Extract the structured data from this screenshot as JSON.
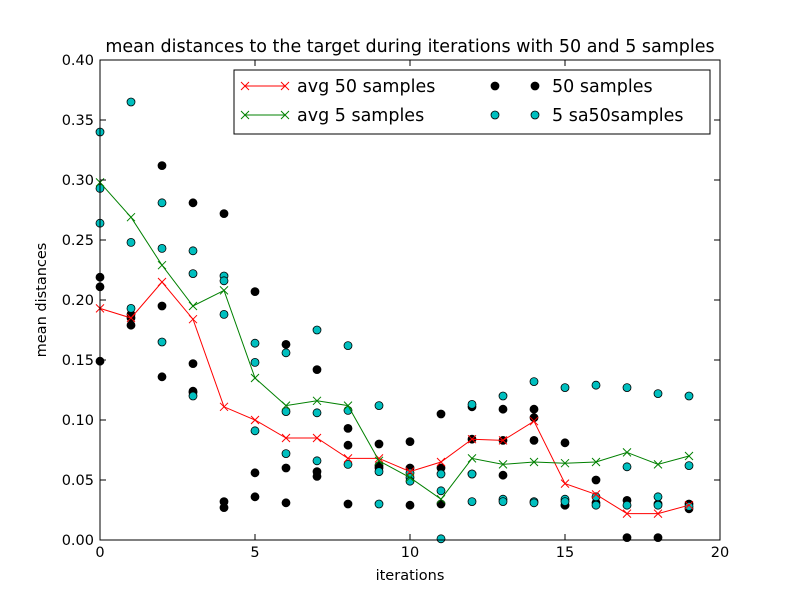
{
  "chart_data": {
    "type": "scatter",
    "title": "mean distances to the target during iterations with 50 and 5 samples",
    "xlabel": "iterations",
    "ylabel": "mean distances",
    "xlim": [
      0,
      20
    ],
    "ylim": [
      0,
      0.4
    ],
    "x_ticks": [
      "0",
      "5",
      "10",
      "15",
      "20"
    ],
    "y_ticks": [
      "0.00",
      "0.05",
      "0.10",
      "0.15",
      "0.20",
      "0.25",
      "0.30",
      "0.35",
      "0.40"
    ],
    "x_tick_values": [
      0,
      5,
      10,
      15,
      20
    ],
    "y_tick_values": [
      0,
      0.05,
      0.1,
      0.15,
      0.2,
      0.25,
      0.3,
      0.35,
      0.4
    ],
    "grid": false,
    "legend_position": "top-right",
    "legend_columns": 2,
    "series": [
      {
        "name": "avg 50 samples",
        "kind": "line",
        "marker": "x",
        "color": "#ff0000",
        "x": [
          0,
          1,
          2,
          3,
          4,
          5,
          6,
          7,
          8,
          9,
          10,
          11,
          12,
          13,
          14,
          15,
          16,
          17,
          18,
          19
        ],
        "y": [
          0.193,
          0.185,
          0.215,
          0.184,
          0.111,
          0.1,
          0.085,
          0.085,
          0.068,
          0.068,
          0.057,
          0.065,
          0.084,
          0.083,
          0.099,
          0.047,
          0.038,
          0.022,
          0.022,
          0.029
        ]
      },
      {
        "name": "avg 5 samples",
        "kind": "line",
        "marker": "x",
        "color": "#008000",
        "x": [
          0,
          1,
          2,
          3,
          4,
          5,
          6,
          7,
          8,
          9,
          10,
          11,
          12,
          13,
          14,
          15,
          16,
          17,
          18,
          19
        ],
        "y": [
          0.298,
          0.269,
          0.229,
          0.195,
          0.208,
          0.135,
          0.112,
          0.116,
          0.112,
          0.066,
          0.052,
          0.034,
          0.068,
          0.063,
          0.065,
          0.064,
          0.065,
          0.073,
          0.063,
          0.07
        ]
      },
      {
        "name": "50 samples",
        "kind": "scatter",
        "marker": "o",
        "color": "#000000",
        "points": [
          [
            0,
            0.219
          ],
          [
            0,
            0.211
          ],
          [
            0,
            0.149
          ],
          [
            1,
            0.188
          ],
          [
            1,
            0.185
          ],
          [
            1,
            0.179
          ],
          [
            2,
            0.312
          ],
          [
            2,
            0.195
          ],
          [
            2,
            0.136
          ],
          [
            3,
            0.281
          ],
          [
            3,
            0.147
          ],
          [
            3,
            0.124
          ],
          [
            3,
            0.123
          ],
          [
            4,
            0.272
          ],
          [
            4,
            0.032
          ],
          [
            4,
            0.027
          ],
          [
            5,
            0.207
          ],
          [
            5,
            0.056
          ],
          [
            5,
            0.036
          ],
          [
            6,
            0.163
          ],
          [
            6,
            0.06
          ],
          [
            6,
            0.031
          ],
          [
            7,
            0.142
          ],
          [
            7,
            0.057
          ],
          [
            7,
            0.053
          ],
          [
            8,
            0.093
          ],
          [
            8,
            0.079
          ],
          [
            8,
            0.03
          ],
          [
            9,
            0.08
          ],
          [
            9,
            0.062
          ],
          [
            9,
            0.06
          ],
          [
            10,
            0.082
          ],
          [
            10,
            0.06
          ],
          [
            10,
            0.029
          ],
          [
            11,
            0.105
          ],
          [
            11,
            0.06
          ],
          [
            11,
            0.03
          ],
          [
            12,
            0.111
          ],
          [
            12,
            0.084
          ],
          [
            12,
            0.055
          ],
          [
            13,
            0.109
          ],
          [
            13,
            0.083
          ],
          [
            13,
            0.054
          ],
          [
            14,
            0.109
          ],
          [
            14,
            0.102
          ],
          [
            14,
            0.083
          ],
          [
            15,
            0.081
          ],
          [
            15,
            0.029
          ],
          [
            15,
            0.029
          ],
          [
            16,
            0.05
          ],
          [
            16,
            0.031
          ],
          [
            17,
            0.033
          ],
          [
            17,
            0.002
          ],
          [
            18,
            0.03
          ],
          [
            18,
            0.002
          ],
          [
            19,
            0.03
          ],
          [
            19,
            0.026
          ]
        ]
      },
      {
        "name": "5 sa50samples",
        "kind": "scatter",
        "marker": "o",
        "color": "#00bfbf",
        "points": [
          [
            0,
            0.34
          ],
          [
            0,
            0.293
          ],
          [
            0,
            0.264
          ],
          [
            1,
            0.365
          ],
          [
            1,
            0.248
          ],
          [
            1,
            0.193
          ],
          [
            2,
            0.281
          ],
          [
            2,
            0.243
          ],
          [
            2,
            0.165
          ],
          [
            3,
            0.241
          ],
          [
            3,
            0.222
          ],
          [
            3,
            0.12
          ],
          [
            4,
            0.22
          ],
          [
            4,
            0.216
          ],
          [
            4,
            0.188
          ],
          [
            5,
            0.164
          ],
          [
            5,
            0.148
          ],
          [
            5,
            0.091
          ],
          [
            6,
            0.156
          ],
          [
            6,
            0.107
          ],
          [
            6,
            0.072
          ],
          [
            7,
            0.175
          ],
          [
            7,
            0.106
          ],
          [
            7,
            0.066
          ],
          [
            8,
            0.162
          ],
          [
            8,
            0.108
          ],
          [
            8,
            0.063
          ],
          [
            9,
            0.112
          ],
          [
            9,
            0.057
          ],
          [
            9,
            0.03
          ],
          [
            10,
            0.056
          ],
          [
            10,
            0.052
          ],
          [
            10,
            0.049
          ],
          [
            11,
            0.055
          ],
          [
            11,
            0.041
          ],
          [
            11,
            0.001
          ],
          [
            12,
            0.113
          ],
          [
            12,
            0.055
          ],
          [
            12,
            0.032
          ],
          [
            13,
            0.12
          ],
          [
            13,
            0.034
          ],
          [
            13,
            0.032
          ],
          [
            14,
            0.132
          ],
          [
            14,
            0.032
          ],
          [
            14,
            0.031
          ],
          [
            15,
            0.127
          ],
          [
            15,
            0.034
          ],
          [
            15,
            0.032
          ],
          [
            16,
            0.129
          ],
          [
            16,
            0.036
          ],
          [
            16,
            0.029
          ],
          [
            17,
            0.127
          ],
          [
            17,
            0.061
          ],
          [
            17,
            0.029
          ],
          [
            18,
            0.122
          ],
          [
            18,
            0.036
          ],
          [
            18,
            0.029
          ],
          [
            19,
            0.12
          ],
          [
            19,
            0.062
          ],
          [
            19,
            0.028
          ]
        ]
      }
    ]
  }
}
